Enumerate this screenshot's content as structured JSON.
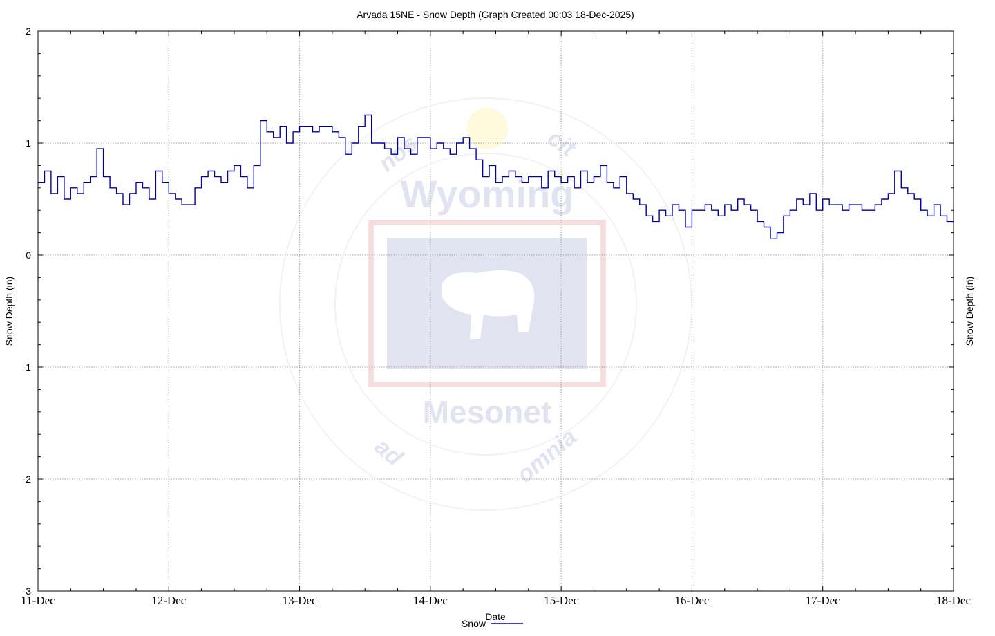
{
  "chart_data": {
    "type": "line",
    "title": "Arvada 15NE - Snow Depth (Graph Created 00:03 18-Dec-2025)",
    "ylabel_left": "Snow Depth (in)",
    "ylabel_right": "Snow Depth (in)",
    "xlabel": "Date",
    "xlim_days": [
      0,
      7
    ],
    "ylim": [
      -3,
      2
    ],
    "y_ticks": [
      -3,
      -2,
      -1,
      0,
      1,
      2
    ],
    "x_tick_labels": [
      "11-Dec",
      "12-Dec",
      "13-Dec",
      "14-Dec",
      "15-Dec",
      "16-Dec",
      "17-Dec",
      "18-Dec"
    ],
    "grid": true,
    "legend_placement": "bottom-center",
    "series": [
      {
        "name": "Snow",
        "color": "#0000a8",
        "x": [
          0.0,
          0.05,
          0.1,
          0.15,
          0.2,
          0.25,
          0.3,
          0.35,
          0.4,
          0.45,
          0.5,
          0.55,
          0.6,
          0.65,
          0.7,
          0.75,
          0.8,
          0.85,
          0.9,
          0.95,
          1.0,
          1.05,
          1.1,
          1.15,
          1.2,
          1.25,
          1.3,
          1.35,
          1.4,
          1.45,
          1.5,
          1.55,
          1.6,
          1.65,
          1.7,
          1.75,
          1.8,
          1.85,
          1.9,
          1.95,
          2.0,
          2.05,
          2.1,
          2.15,
          2.2,
          2.25,
          2.3,
          2.35,
          2.4,
          2.45,
          2.5,
          2.55,
          2.6,
          2.65,
          2.7,
          2.75,
          2.8,
          2.85,
          2.9,
          2.95,
          3.0,
          3.05,
          3.1,
          3.15,
          3.2,
          3.25,
          3.3,
          3.35,
          3.4,
          3.45,
          3.5,
          3.55,
          3.6,
          3.65,
          3.7,
          3.75,
          3.8,
          3.85,
          3.9,
          3.95,
          4.0,
          4.05,
          4.1,
          4.15,
          4.2,
          4.25,
          4.3,
          4.35,
          4.4,
          4.45,
          4.5,
          4.55,
          4.6,
          4.65,
          4.7,
          4.75,
          4.8,
          4.85,
          4.9,
          4.95,
          5.0,
          5.05,
          5.1,
          5.15,
          5.2,
          5.25,
          5.3,
          5.35,
          5.4,
          5.45,
          5.5,
          5.55,
          5.6,
          5.65,
          5.7,
          5.75,
          5.8,
          5.85,
          5.9,
          5.95,
          6.0,
          6.05,
          6.1,
          6.15,
          6.2,
          6.25,
          6.3,
          6.35,
          6.4,
          6.45,
          6.5,
          6.55,
          6.6,
          6.65,
          6.7,
          6.75,
          6.8,
          6.85,
          6.9,
          6.95,
          7.0
        ],
        "values": [
          0.65,
          0.75,
          0.55,
          0.7,
          0.5,
          0.6,
          0.55,
          0.65,
          0.7,
          0.95,
          0.7,
          0.6,
          0.55,
          0.45,
          0.55,
          0.65,
          0.6,
          0.5,
          0.75,
          0.65,
          0.55,
          0.5,
          0.45,
          0.45,
          0.6,
          0.7,
          0.75,
          0.7,
          0.65,
          0.75,
          0.8,
          0.7,
          0.6,
          0.8,
          1.2,
          1.1,
          1.05,
          1.15,
          1.0,
          1.1,
          1.15,
          1.15,
          1.1,
          1.15,
          1.15,
          1.1,
          1.05,
          0.9,
          1.0,
          1.15,
          1.25,
          1.0,
          1.0,
          0.95,
          0.9,
          1.05,
          0.95,
          0.9,
          1.05,
          1.05,
          0.95,
          1.0,
          0.95,
          0.9,
          1.0,
          1.05,
          0.95,
          0.85,
          0.7,
          0.8,
          0.65,
          0.7,
          0.75,
          0.7,
          0.65,
          0.7,
          0.7,
          0.6,
          0.75,
          0.7,
          0.65,
          0.7,
          0.6,
          0.75,
          0.65,
          0.7,
          0.8,
          0.65,
          0.6,
          0.7,
          0.55,
          0.5,
          0.45,
          0.35,
          0.3,
          0.4,
          0.35,
          0.45,
          0.4,
          0.25,
          0.4,
          0.4,
          0.45,
          0.4,
          0.35,
          0.45,
          0.4,
          0.5,
          0.45,
          0.4,
          0.3,
          0.25,
          0.15,
          0.2,
          0.35,
          0.4,
          0.5,
          0.45,
          0.55,
          0.4,
          0.5,
          0.45,
          0.45,
          0.4,
          0.45,
          0.45,
          0.4,
          0.4,
          0.45,
          0.5,
          0.55,
          0.75,
          0.6,
          0.55,
          0.5,
          0.4,
          0.35,
          0.45,
          0.35,
          0.3,
          0.3
        ]
      }
    ]
  },
  "watermark": {
    "text_top": "Wyoming",
    "text_bottom": "Mesonet",
    "ring_top": "nos",
    "ring_top_right": "cit",
    "ring_bottom_left": "ad",
    "ring_bottom_right": "omnia"
  },
  "legend": {
    "label": "Snow"
  }
}
